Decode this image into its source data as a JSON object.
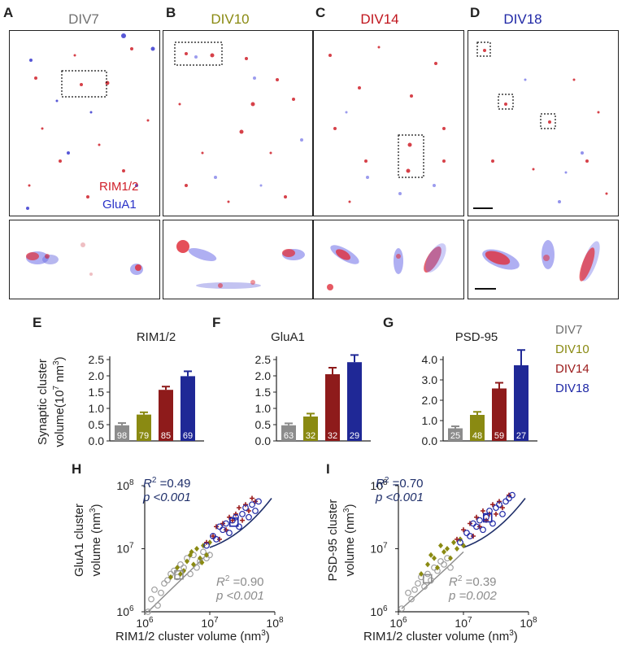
{
  "figure": {
    "panel_letters": [
      "A",
      "B",
      "C",
      "D",
      "E",
      "F",
      "G",
      "H",
      "I"
    ],
    "micro_panels": [
      {
        "letter": "A",
        "title": "DIV7",
        "color": "#707070"
      },
      {
        "letter": "B",
        "title": "DIV10",
        "color": "#8a8a12"
      },
      {
        "letter": "C",
        "title": "DIV14",
        "color": "#c0141c"
      },
      {
        "letter": "D",
        "title": "DIV18",
        "color": "#1f28a6"
      }
    ],
    "channel_labels": [
      {
        "text": "RIM1/2",
        "color": "#d0202a"
      },
      {
        "text": "GluA1",
        "color": "#2a32c8"
      }
    ],
    "legend": [
      {
        "text": "DIV7",
        "color": "#707070"
      },
      {
        "text": "DIV10",
        "color": "#8a8a12"
      },
      {
        "text": "DIV14",
        "color": "#9b1b1b"
      },
      {
        "text": "DIV18",
        "color": "#1f28a6"
      }
    ]
  },
  "chart_data": [
    {
      "type": "bar",
      "panel": "E",
      "title": "RIM1/2",
      "ylabel_line1": "Synaptic cluster",
      "ylabel_line2": "volume(10",
      "ylabel_sup": "7",
      "ylabel_unit": " nm",
      "ylabel_sup2": "3",
      "ylabel_close": ")",
      "categories": [
        "DIV7",
        "DIV10",
        "DIV14",
        "DIV18"
      ],
      "values": [
        0.48,
        0.81,
        1.57,
        1.99
      ],
      "errors": [
        0.07,
        0.07,
        0.1,
        0.15
      ],
      "n_labels": [
        "98",
        "79",
        "85",
        "69"
      ],
      "colors": [
        "#8c8c8c",
        "#8a8a12",
        "#8e1b1b",
        "#1f2896"
      ],
      "ylim": [
        0,
        2.5
      ],
      "yticks": [
        "0.0",
        "0.5",
        "1.0",
        "1.5",
        "2.0",
        "2.5"
      ]
    },
    {
      "type": "bar",
      "panel": "F",
      "title": "GluA1",
      "categories": [
        "DIV7",
        "DIV10",
        "DIV14",
        "DIV18"
      ],
      "values": [
        0.48,
        0.75,
        2.05,
        2.42
      ],
      "errors": [
        0.06,
        0.09,
        0.2,
        0.22
      ],
      "n_labels": [
        "63",
        "32",
        "32",
        "29"
      ],
      "colors": [
        "#8c8c8c",
        "#8a8a12",
        "#8e1b1b",
        "#1f2896"
      ],
      "ylim": [
        0,
        2.5
      ],
      "yticks": [
        "0.0",
        "0.5",
        "1.0",
        "1.5",
        "2.0",
        "2.5"
      ]
    },
    {
      "type": "bar",
      "panel": "G",
      "title": "PSD-95",
      "categories": [
        "DIV7",
        "DIV10",
        "DIV14",
        "DIV18"
      ],
      "values": [
        0.62,
        1.28,
        2.58,
        3.72
      ],
      "errors": [
        0.1,
        0.15,
        0.28,
        0.75
      ],
      "n_labels": [
        "25",
        "48",
        "59",
        "27"
      ],
      "colors": [
        "#8c8c8c",
        "#8a8a12",
        "#8e1b1b",
        "#1f2896"
      ],
      "ylim": [
        0,
        4.0
      ],
      "yticks": [
        "0.0",
        "1.0",
        "2.0",
        "3.0",
        "4.0"
      ]
    },
    {
      "type": "scatter",
      "panel": "H",
      "xlabel_main": "RIM1/2 cluster volume (nm",
      "xlabel_sup": "3",
      "xlabel_close": ")",
      "ylabel_line1": "GluA1 cluster",
      "ylabel_line2": "volume (nm",
      "ylabel_sup": "3",
      "ylabel_close": ")",
      "x_tick_base": "10",
      "x_tick_exps": [
        "6",
        "7",
        "8"
      ],
      "y_tick_base": "10",
      "y_tick_exps": [
        "6",
        "7",
        "8"
      ],
      "xlim_log10": [
        6,
        8
      ],
      "ylim_log10": [
        6,
        8
      ],
      "fit_div18": {
        "r2_label": "R",
        "r2_sup": "2",
        "r2_value": " =0.49",
        "p_text": "p <0.001",
        "color": "#1f2f6a"
      },
      "fit_div7": {
        "r2_label": "R",
        "r2_sup": "2",
        "r2_value": " =0.90",
        "p_text": "p <0.001",
        "color": "#8c8c8c"
      },
      "series": [
        {
          "name": "DIV7",
          "marker": "circle-open",
          "color": "#a0a0a0",
          "points": [
            [
              6.05,
              6.0
            ],
            [
              6.1,
              6.2
            ],
            [
              6.15,
              6.35
            ],
            [
              6.25,
              6.3
            ],
            [
              6.3,
              6.45
            ],
            [
              6.35,
              6.5
            ],
            [
              6.4,
              6.6
            ],
            [
              6.5,
              6.55
            ],
            [
              6.55,
              6.75
            ],
            [
              6.6,
              6.7
            ],
            [
              6.65,
              6.85
            ],
            [
              6.7,
              6.6
            ],
            [
              6.75,
              6.9
            ],
            [
              6.8,
              6.7
            ],
            [
              6.85,
              6.8
            ],
            [
              6.9,
              6.95
            ],
            [
              6.95,
              6.85
            ],
            [
              7.0,
              6.9
            ],
            [
              6.2,
              6.1
            ],
            [
              6.45,
              6.65
            ]
          ]
        },
        {
          "name": "DIV10",
          "marker": "diamond",
          "color": "#8a8a12",
          "points": [
            [
              6.4,
              6.55
            ],
            [
              6.5,
              6.7
            ],
            [
              6.6,
              6.65
            ],
            [
              6.65,
              6.8
            ],
            [
              6.7,
              6.9
            ],
            [
              6.75,
              6.75
            ],
            [
              6.8,
              7.0
            ],
            [
              6.85,
              6.85
            ],
            [
              6.9,
              7.05
            ],
            [
              6.95,
              6.9
            ],
            [
              7.0,
              7.1
            ],
            [
              6.55,
              6.6
            ],
            [
              6.72,
              6.95
            ],
            [
              6.88,
              6.78
            ]
          ]
        },
        {
          "name": "DIV14",
          "marker": "cross",
          "color": "#9b1b1b",
          "points": [
            [
              6.95,
              7.1
            ],
            [
              7.05,
              7.2
            ],
            [
              7.1,
              7.35
            ],
            [
              7.2,
              7.4
            ],
            [
              7.25,
              7.3
            ],
            [
              7.3,
              7.5
            ],
            [
              7.4,
              7.55
            ],
            [
              7.45,
              7.65
            ],
            [
              7.5,
              7.45
            ],
            [
              7.55,
              7.7
            ],
            [
              7.6,
              7.6
            ],
            [
              7.7,
              7.75
            ],
            [
              7.15,
              7.15
            ],
            [
              7.35,
              7.45
            ],
            [
              7.65,
              7.8
            ]
          ]
        },
        {
          "name": "DIV18",
          "marker": "circle-open",
          "color": "#1f28a6",
          "points": [
            [
              6.95,
              7.05
            ],
            [
              7.05,
              7.2
            ],
            [
              7.1,
              7.15
            ],
            [
              7.2,
              7.3
            ],
            [
              7.25,
              7.4
            ],
            [
              7.3,
              7.25
            ],
            [
              7.35,
              7.45
            ],
            [
              7.4,
              7.5
            ],
            [
              7.5,
              7.55
            ],
            [
              7.55,
              7.65
            ],
            [
              7.6,
              7.5
            ],
            [
              7.65,
              7.7
            ],
            [
              7.7,
              7.6
            ],
            [
              7.75,
              7.75
            ],
            [
              7.45,
              7.35
            ],
            [
              7.15,
              7.35
            ]
          ]
        }
      ]
    },
    {
      "type": "scatter",
      "panel": "I",
      "xlabel_main": "RIM1/2 cluster volume (nm",
      "xlabel_sup": "3",
      "xlabel_close": ")",
      "ylabel_line1": "PSD-95 cluster",
      "ylabel_line2": "volume (nm",
      "ylabel_sup": "3",
      "ylabel_close": ")",
      "x_tick_base": "10",
      "x_tick_exps": [
        "6",
        "7",
        "8"
      ],
      "y_tick_base": "10",
      "y_tick_exps": [
        "6",
        "7",
        "8"
      ],
      "xlim_log10": [
        6,
        8
      ],
      "ylim_log10": [
        6,
        8
      ],
      "fit_div18": {
        "r2_label": "R",
        "r2_sup": "2",
        "r2_value": " =0.70",
        "p_text": "p <0.001",
        "color": "#1f2f6a"
      },
      "fit_div7": {
        "r2_label": "R",
        "r2_sup": "2",
        "r2_value": " =0.39",
        "p_text": "p =0.002",
        "color": "#8c8c8c"
      },
      "series": [
        {
          "name": "DIV7",
          "marker": "circle-open",
          "color": "#a0a0a0",
          "points": [
            [
              6.05,
              6.05
            ],
            [
              6.15,
              6.3
            ],
            [
              6.2,
              6.2
            ],
            [
              6.3,
              6.45
            ],
            [
              6.35,
              6.55
            ],
            [
              6.45,
              6.6
            ],
            [
              6.5,
              6.5
            ],
            [
              6.55,
              6.7
            ],
            [
              6.6,
              6.65
            ],
            [
              6.65,
              6.8
            ],
            [
              6.7,
              6.75
            ],
            [
              6.75,
              6.85
            ],
            [
              6.8,
              6.7
            ],
            [
              6.4,
              6.4
            ],
            [
              6.25,
              6.35
            ]
          ]
        },
        {
          "name": "DIV10",
          "marker": "diamond",
          "color": "#8a8a12",
          "points": [
            [
              6.35,
              6.6
            ],
            [
              6.45,
              6.75
            ],
            [
              6.55,
              6.85
            ],
            [
              6.6,
              6.7
            ],
            [
              6.7,
              6.95
            ],
            [
              6.75,
              7.0
            ],
            [
              6.8,
              6.85
            ],
            [
              6.85,
              7.1
            ],
            [
              6.9,
              7.0
            ],
            [
              6.95,
              7.15
            ],
            [
              7.0,
              7.05
            ],
            [
              6.5,
              6.9
            ],
            [
              6.65,
              7.05
            ]
          ]
        },
        {
          "name": "DIV14",
          "marker": "cross",
          "color": "#9b1b1b",
          "points": [
            [
              6.9,
              7.15
            ],
            [
              7.0,
              7.3
            ],
            [
              7.1,
              7.4
            ],
            [
              7.2,
              7.5
            ],
            [
              7.25,
              7.35
            ],
            [
              7.3,
              7.6
            ],
            [
              7.4,
              7.55
            ],
            [
              7.45,
              7.7
            ],
            [
              7.55,
              7.75
            ],
            [
              7.6,
              7.65
            ],
            [
              7.7,
              7.85
            ],
            [
              7.15,
              7.2
            ],
            [
              7.35,
              7.45
            ],
            [
              7.5,
              7.55
            ]
          ]
        },
        {
          "name": "DIV18",
          "marker": "circle-open",
          "color": "#1f28a6",
          "points": [
            [
              6.95,
              7.1
            ],
            [
              7.05,
              7.25
            ],
            [
              7.1,
              7.2
            ],
            [
              7.2,
              7.35
            ],
            [
              7.25,
              7.45
            ],
            [
              7.3,
              7.3
            ],
            [
              7.35,
              7.5
            ],
            [
              7.4,
              7.6
            ],
            [
              7.5,
              7.65
            ],
            [
              7.55,
              7.7
            ],
            [
              7.6,
              7.55
            ],
            [
              7.65,
              7.75
            ],
            [
              7.7,
              7.8
            ],
            [
              7.75,
              7.85
            ],
            [
              7.45,
              7.4
            ],
            [
              7.15,
              7.4
            ]
          ]
        }
      ]
    }
  ]
}
